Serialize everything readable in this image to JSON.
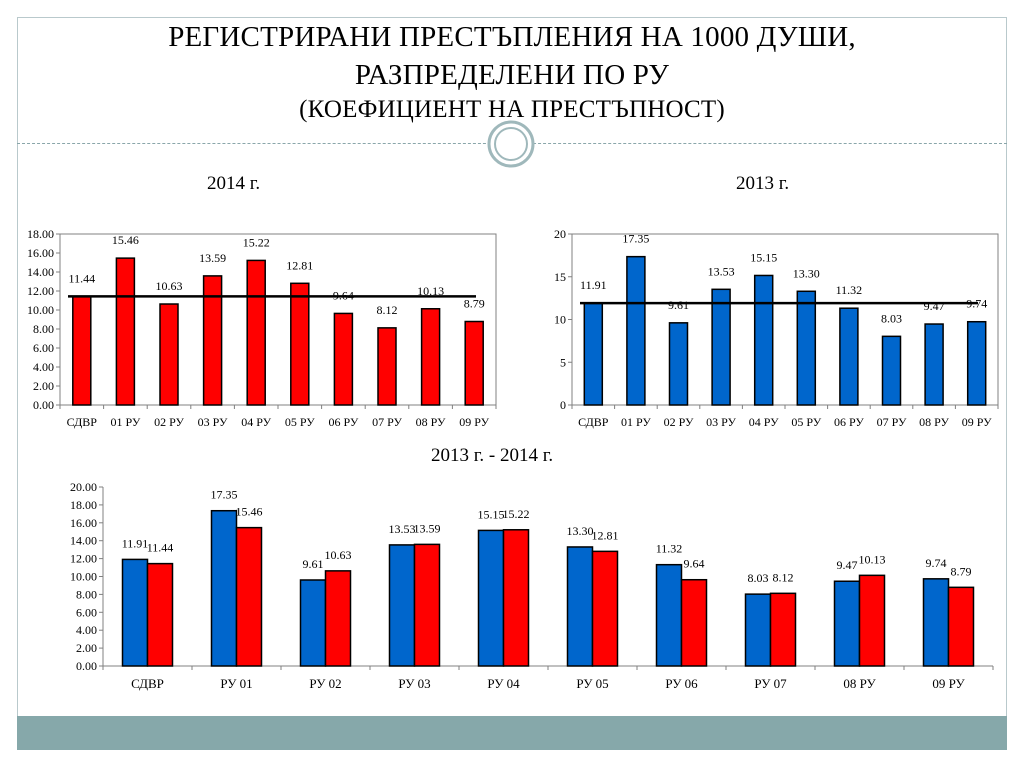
{
  "slide": {
    "title_line1": "РЕГИСТРИРАНИ ПРЕСТЪПЛЕНИЯ НА 1000 ДУШИ,",
    "title_line2": "РАЗПРЕДЕЛЕНИ ПО РУ",
    "title_line3": "(КОЕФИЦИЕНТ НА ПРЕСТЪПНОСТ)"
  },
  "colors": {
    "red": "#ff0000",
    "blue": "#0066cc",
    "band": "#86a8aa"
  },
  "chart_data": [
    {
      "id": "c2014",
      "type": "bar",
      "title": "2014 г.",
      "categories": [
        "СДВР",
        "01 РУ",
        "02 РУ",
        "03 РУ",
        "04 РУ",
        "05 РУ",
        "06 РУ",
        "07 РУ",
        "08 РУ",
        "09 РУ"
      ],
      "series": [
        {
          "values": [
            11.44,
            15.46,
            10.63,
            13.59,
            15.22,
            12.81,
            9.64,
            8.12,
            10.13,
            8.79
          ]
        }
      ],
      "value_labels": [
        "11.44",
        "15.46",
        "10.63",
        "13.59",
        "15.22",
        "12.81",
        "9.64",
        "8.12",
        "10.13",
        "8.79"
      ],
      "reference_line": 11.44,
      "ylim": [
        0,
        18
      ],
      "yticks": [
        "0.00",
        "2.00",
        "4.00",
        "6.00",
        "8.00",
        "10.00",
        "12.00",
        "14.00",
        "16.00",
        "18.00"
      ],
      "grid": false
    },
    {
      "id": "c2013",
      "type": "bar",
      "title": "2013 г.",
      "categories": [
        "СДВР",
        "01 РУ",
        "02 РУ",
        "03 РУ",
        "04 РУ",
        "05 РУ",
        "06 РУ",
        "07 РУ",
        "08 РУ",
        "09 РУ"
      ],
      "series": [
        {
          "values": [
            11.91,
            17.35,
            9.61,
            13.53,
            15.15,
            13.3,
            11.32,
            8.03,
            9.47,
            9.74
          ]
        }
      ],
      "value_labels": [
        "11.91",
        "17.35",
        "9.61",
        "13.53",
        "15.15",
        "13.30",
        "11.32",
        "8.03",
        "9.47",
        "9.74"
      ],
      "reference_line": 11.91,
      "ylim": [
        0,
        20
      ],
      "yticks": [
        "0",
        "5",
        "10",
        "15",
        "20"
      ],
      "grid": false
    },
    {
      "id": "ccmp",
      "type": "bar",
      "title": "2013 г. - 2014 г.",
      "categories": [
        "СДВР",
        "РУ 01",
        "РУ 02",
        "РУ 03",
        "РУ 04",
        "РУ 05",
        "РУ 06",
        "РУ 07",
        "08 РУ",
        "09 РУ"
      ],
      "series": [
        {
          "values": [
            11.91,
            17.35,
            9.61,
            13.53,
            15.15,
            13.3,
            11.32,
            8.03,
            9.47,
            9.74
          ],
          "value_labels": [
            "11.91",
            "17.35",
            "9.61",
            "13.53",
            "15.15",
            "13.30",
            "11.32",
            "8.03",
            "9.47",
            "9.74"
          ]
        },
        {
          "values": [
            11.44,
            15.46,
            10.63,
            13.59,
            15.22,
            12.81,
            9.64,
            8.12,
            10.13,
            8.79
          ],
          "value_labels": [
            "11.44",
            "15.46",
            "10.63",
            "13.59",
            "15.22",
            "12.81",
            "9.64",
            "8.12",
            "10.13",
            "8.79"
          ]
        }
      ],
      "ylim": [
        0,
        20
      ],
      "yticks": [
        "0.00",
        "2.00",
        "4.00",
        "6.00",
        "8.00",
        "10.00",
        "12.00",
        "14.00",
        "16.00",
        "18.00",
        "20.00"
      ],
      "grid": false
    }
  ]
}
